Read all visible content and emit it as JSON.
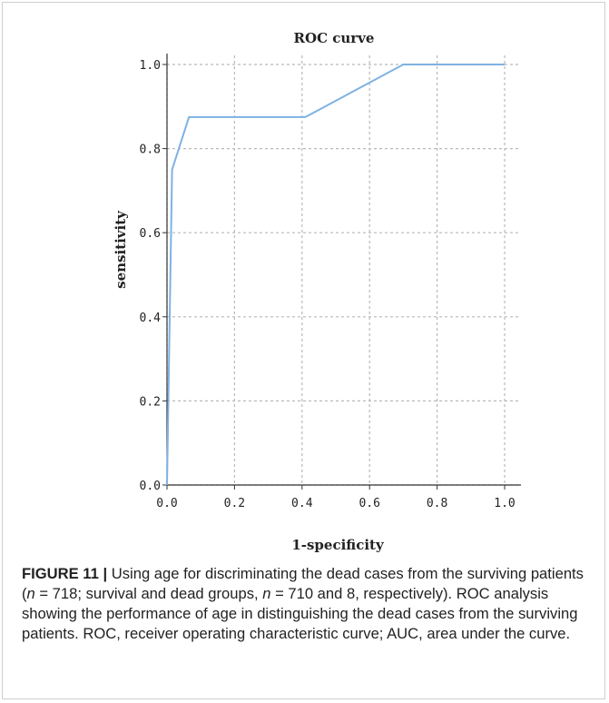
{
  "chart_data": {
    "type": "line",
    "title": "ROC curve",
    "xlabel": "1-specificity",
    "ylabel": "sensitivity",
    "xlim": [
      0.0,
      1.0
    ],
    "ylim": [
      0.0,
      1.0
    ],
    "xticks": [
      "0.0",
      "0.2",
      "0.4",
      "0.6",
      "0.8",
      "1.0"
    ],
    "yticks": [
      "0.0",
      "0.2",
      "0.4",
      "0.6",
      "0.8",
      "1.0"
    ],
    "grid": true,
    "series": [
      {
        "x": [
          0.0,
          0.015,
          0.065,
          0.41,
          0.7,
          1.0
        ],
        "y": [
          0.0,
          0.75,
          0.875,
          0.875,
          1.0,
          1.0
        ]
      }
    ],
    "colors": {
      "line": "#7fb2e3",
      "grid": "#b9b9b9",
      "axis": "#333333"
    }
  },
  "caption": {
    "label": "FIGURE 11",
    "separator": "|",
    "part1": "Using age for discriminating the dead cases from the surviving patients (",
    "n1_var": "n",
    "part2": " = 718; survival and dead groups, ",
    "n2_var": "n",
    "part3": " = 710 and 8, respectively). ROC analysis showing the performance of age in distinguishing the dead cases from the surviving patients. ROC, receiver operating characteristic curve; AUC, area under the curve."
  }
}
